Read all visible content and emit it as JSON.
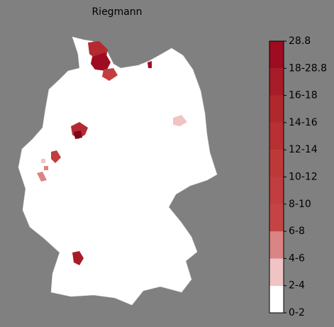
{
  "title": "Riegmann",
  "colorbar": {
    "labels": [
      "0-2",
      "2-4",
      "4-6",
      "6-8",
      "8-10",
      "10-12",
      "12-14",
      "14-16",
      "16-18",
      "18-28.8",
      "28.8"
    ],
    "colors": [
      "#ffffff",
      "#f0c4c4",
      "#db8484",
      "#c44444",
      "#c23d3d",
      "#bf3838",
      "#b83032",
      "#b0282c",
      "#a81c28",
      "#9e0c22"
    ]
  }
}
